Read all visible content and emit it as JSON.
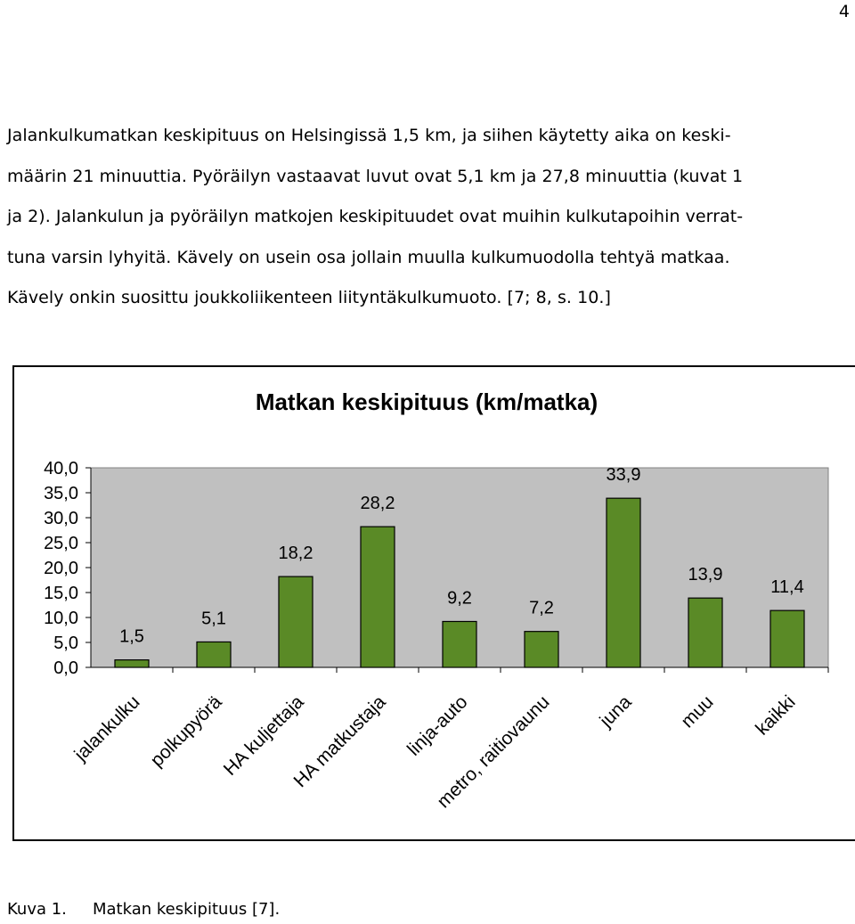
{
  "page": {
    "number": "4",
    "paragraph": "Jalankulkumatkan keskipituus on Helsingissä 1,5 km, ja siihen käytetty aika on keskimäärin 21 minuuttia. Pyöräilyn vastaavat luvut ovat 5,1 km ja 27,8 minuuttia (kuvat 1 ja 2). Jalankulun ja pyöräilyn matkojen keskipituudet ovat muihin kulkutapoihin verrattuna varsin lyhyitä. Kävely on usein osa jollain muulla kulkumuodolla tehtyä matkaa. Kävely onkin suosittu joukkoliikenteen liityntäkulkumuoto. [7; 8, s. 10.]",
    "paragraph_lines": [
      "Jalankulkumatkan keskipituus on Helsingissä 1,5 km, ja siihen käytetty aika on keski-",
      "määrin 21 minuuttia. Pyöräilyn vastaavat luvut ovat 5,1 km ja 27,8 minuuttia (kuvat 1",
      "ja 2). Jalankulun ja pyöräilyn matkojen keskipituudet ovat muihin kulkutapoihin verrat-",
      "tuna varsin lyhyitä. Kävely on usein osa jollain muulla kulkumuodolla tehtyä matkaa.",
      "Kävely onkin suosittu joukkoliikenteen liityntäkulkumuoto. [7; 8, s. 10.]"
    ],
    "caption_label": "Kuva 1.",
    "caption_text": "Matkan keskipituus [7]."
  },
  "chart_data": {
    "type": "bar",
    "title": "Matkan keskipituus (km/matka)",
    "categories": [
      "jalankulku",
      "polkupyörä",
      "HA kuljettaja",
      "HA matkustaja",
      "linja-auto",
      "metro, raitiovaunu",
      "juna",
      "muu",
      "kaikki"
    ],
    "values": [
      1.5,
      5.1,
      18.2,
      28.2,
      9.2,
      7.2,
      33.9,
      13.9,
      11.4
    ],
    "data_labels": [
      "1,5",
      "5,1",
      "18,2",
      "28,2",
      "9,2",
      "7,2",
      "33,9",
      "13,9",
      "11,4"
    ],
    "y_ticks": [
      0,
      5,
      10,
      15,
      20,
      25,
      30,
      35,
      40
    ],
    "y_tick_labels": [
      "0,0",
      "5,0",
      "10,0",
      "15,0",
      "20,0",
      "25,0",
      "30,0",
      "35,0",
      "40,0"
    ],
    "ylim": [
      0,
      40
    ],
    "grid": false,
    "legend": "none",
    "colors": {
      "bar": "#5a8a26",
      "plot_area": "#c0c0c0",
      "border": "#000000"
    }
  }
}
